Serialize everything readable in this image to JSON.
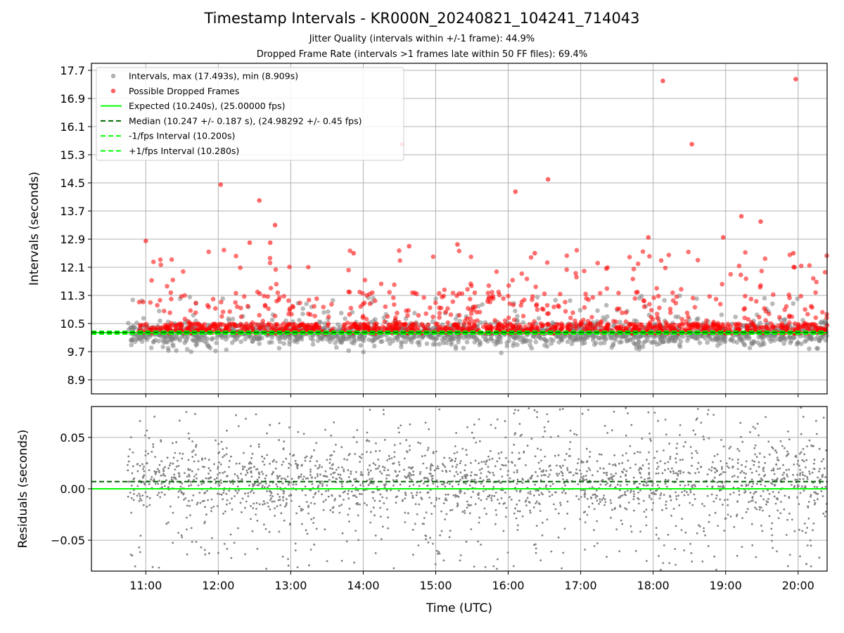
{
  "chart_data": [
    {
      "type": "scatter",
      "title": "Timestamp Intervals - KR000N_20240821_104241_714043",
      "subtitles": [
        "Jitter Quality (intervals within +/-1 frame): 44.9%",
        "Dropped Frame Rate (intervals >1 frames late within 50 FF files): 69.4%"
      ],
      "xlabel": "",
      "ylabel": "Intervals (seconds)",
      "x_range": [
        "10:15",
        "20:24"
      ],
      "x_ticks": [
        "11:00",
        "12:00",
        "13:00",
        "14:00",
        "15:00",
        "16:00",
        "17:00",
        "18:00",
        "19:00",
        "20:00"
      ],
      "ylim": [
        8.5,
        17.9
      ],
      "y_ticks": [
        8.9,
        9.7,
        10.5,
        11.3,
        12.1,
        12.9,
        13.7,
        14.5,
        15.3,
        16.1,
        16.9,
        17.7
      ],
      "grid": true,
      "legend_position": "top-left",
      "legend": [
        "Intervals, max (17.493s), min (8.909s)",
        "Possible Dropped Frames",
        "Expected (10.240s), (25.00000 fps)",
        "Median (10.247 +/- 0.187 s), (24.98292 +/- 0.45 fps)",
        "-1/fps Interval (10.200s)",
        "+1/fps Interval (10.280s)"
      ],
      "data_start": "10:45",
      "data_end": "20:24",
      "stats": {
        "max_interval": 17.493,
        "min_interval": 8.909,
        "expected": 10.24,
        "median": 10.247,
        "median_spread": 0.187,
        "lower_bound": 10.2,
        "upper_bound": 10.28
      },
      "dropped_outliers": [
        {
          "x": "12:02",
          "y": 14.45
        },
        {
          "x": "12:34",
          "y": 14.0
        },
        {
          "x": "12:47",
          "y": 13.3
        },
        {
          "x": "11:00",
          "y": 12.85
        },
        {
          "x": "12:26",
          "y": 12.8
        },
        {
          "x": "12:43",
          "y": 12.8
        },
        {
          "x": "14:32",
          "y": 15.6
        },
        {
          "x": "14:38",
          "y": 12.7
        },
        {
          "x": "15:18",
          "y": 12.75
        },
        {
          "x": "16:06",
          "y": 14.25
        },
        {
          "x": "16:33",
          "y": 14.6
        },
        {
          "x": "16:22",
          "y": 12.5
        },
        {
          "x": "18:08",
          "y": 17.4
        },
        {
          "x": "17:56",
          "y": 12.95
        },
        {
          "x": "18:32",
          "y": 15.6
        },
        {
          "x": "18:58",
          "y": 12.95
        },
        {
          "x": "19:13",
          "y": 13.55
        },
        {
          "x": "19:29",
          "y": 13.4
        },
        {
          "x": "19:58",
          "y": 17.45
        },
        {
          "x": "19:56",
          "y": 12.5
        },
        {
          "x": "13:52",
          "y": 12.5
        }
      ],
      "colors": {
        "intervals": "#808080",
        "dropped": "#ff0000",
        "expected": "#00ff00",
        "median": "#006400",
        "bounds": "#00ff00"
      }
    },
    {
      "type": "scatter",
      "title": "",
      "xlabel": "Time (UTC)",
      "ylabel": "Residuals (seconds)",
      "x_range": [
        "10:15",
        "20:24"
      ],
      "x_ticks": [
        "11:00",
        "12:00",
        "13:00",
        "14:00",
        "15:00",
        "16:00",
        "17:00",
        "18:00",
        "19:00",
        "20:00"
      ],
      "ylim": [
        -0.08,
        0.08
      ],
      "y_ticks": [
        "0.05",
        "0.00",
        "−0.05"
      ],
      "y_tick_values": [
        0.05,
        0.0,
        -0.05
      ],
      "grid": true,
      "reference_lines": [
        {
          "y": 0.0,
          "style": "solid",
          "color": "#00ff00"
        },
        {
          "y": 0.007,
          "style": "dashed",
          "color": "#006400"
        }
      ],
      "point_color": "#808080"
    }
  ]
}
